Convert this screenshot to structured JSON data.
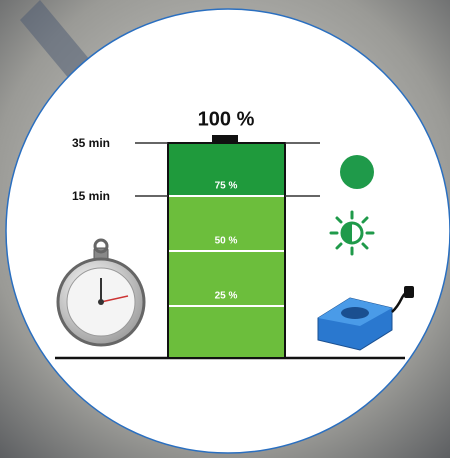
{
  "battery": {
    "full_label": "100 %",
    "levels": [
      "75 %",
      "50 %",
      "25 %"
    ]
  },
  "time_markers": [
    "35 min",
    "15 min"
  ]
}
